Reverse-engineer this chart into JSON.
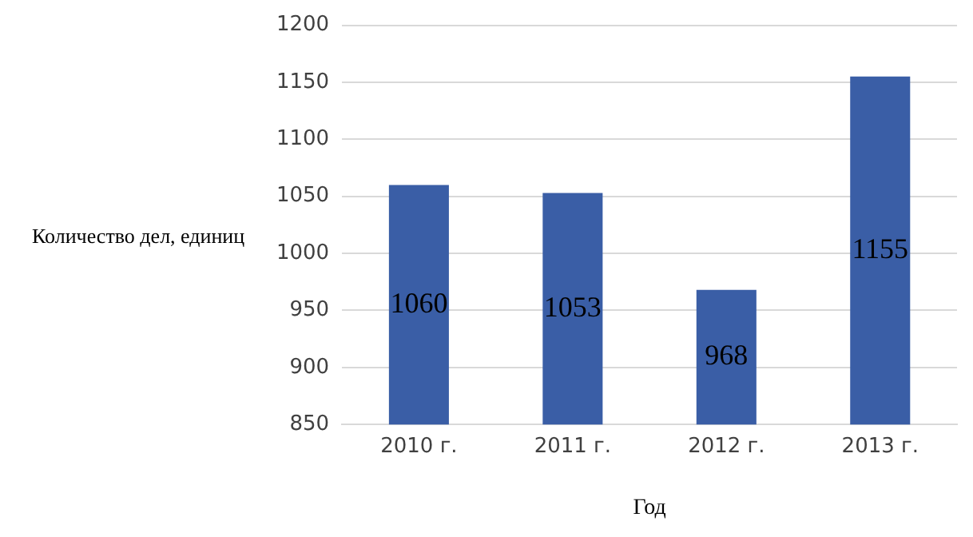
{
  "chart_data": {
    "type": "bar",
    "xlabel": "Год",
    "ylabel": "Количество дел, единиц",
    "categories": [
      "2010 г.",
      "2011 г.",
      "2012 г.",
      "2013 г."
    ],
    "values": [
      1060,
      1053,
      968,
      1155
    ],
    "color": "#3a5ea6",
    "ylim": [
      850,
      1200
    ],
    "yticks": [
      850,
      900,
      950,
      1000,
      1050,
      1100,
      1150,
      1200
    ],
    "grid": "y",
    "data_labels": true,
    "legend": false
  }
}
